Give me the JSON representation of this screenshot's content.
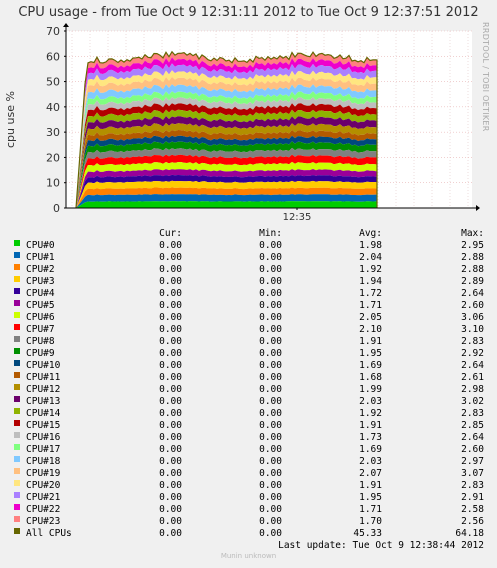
{
  "title": "CPU usage - from Tue Oct  9 12:31:11 2012 to Tue Oct  9 12:37:51 2012",
  "watermark": "RRDTOOL / TOBI OETIKER",
  "footer": "Munin unknown",
  "last_update": "Last update:  Tue Oct  9 12:38:44 2012",
  "legend_header": {
    "cur": "Cur:",
    "min": "Min:",
    "avg": "Avg:",
    "max": "Max:"
  },
  "chart_data": {
    "type": "area",
    "title": "CPU usage - from Tue Oct  9 12:31:11 2012 to Tue Oct  9 12:37:51 2012",
    "ylabel": "cpu use %",
    "xlabel": "",
    "ylim": [
      0,
      70
    ],
    "yticks": [
      0,
      10,
      20,
      30,
      40,
      50,
      60,
      70
    ],
    "xticks": [
      "12:35"
    ],
    "grid": true,
    "stacked": true,
    "series": [
      {
        "name": "CPU#0",
        "color": "#00cc00",
        "cur": "0.00",
        "min": "0.00",
        "avg": "1.98",
        "max": "2.95"
      },
      {
        "name": "CPU#1",
        "color": "#0066b3",
        "cur": "0.00",
        "min": "0.00",
        "avg": "2.04",
        "max": "2.88"
      },
      {
        "name": "CPU#2",
        "color": "#ff8000",
        "cur": "0.00",
        "min": "0.00",
        "avg": "1.92",
        "max": "2.88"
      },
      {
        "name": "CPU#3",
        "color": "#ffcc00",
        "cur": "0.00",
        "min": "0.00",
        "avg": "1.94",
        "max": "2.89"
      },
      {
        "name": "CPU#4",
        "color": "#330099",
        "cur": "0.00",
        "min": "0.00",
        "avg": "1.72",
        "max": "2.64"
      },
      {
        "name": "CPU#5",
        "color": "#990099",
        "cur": "0.00",
        "min": "0.00",
        "avg": "1.71",
        "max": "2.60"
      },
      {
        "name": "CPU#6",
        "color": "#ccff00",
        "cur": "0.00",
        "min": "0.00",
        "avg": "2.05",
        "max": "3.06"
      },
      {
        "name": "CPU#7",
        "color": "#ff0000",
        "cur": "0.00",
        "min": "0.00",
        "avg": "2.10",
        "max": "3.10"
      },
      {
        "name": "CPU#8",
        "color": "#808080",
        "cur": "0.00",
        "min": "0.00",
        "avg": "1.91",
        "max": "2.83"
      },
      {
        "name": "CPU#9",
        "color": "#008f00",
        "cur": "0.00",
        "min": "0.00",
        "avg": "1.95",
        "max": "2.92"
      },
      {
        "name": "CPU#10",
        "color": "#00487d",
        "cur": "0.00",
        "min": "0.00",
        "avg": "1.69",
        "max": "2.64"
      },
      {
        "name": "CPU#11",
        "color": "#b35a00",
        "cur": "0.00",
        "min": "0.00",
        "avg": "1.68",
        "max": "2.61"
      },
      {
        "name": "CPU#12",
        "color": "#b38f00",
        "cur": "0.00",
        "min": "0.00",
        "avg": "1.99",
        "max": "2.98"
      },
      {
        "name": "CPU#13",
        "color": "#6b006b",
        "cur": "0.00",
        "min": "0.00",
        "avg": "2.03",
        "max": "3.02"
      },
      {
        "name": "CPU#14",
        "color": "#8fb300",
        "cur": "0.00",
        "min": "0.00",
        "avg": "1.92",
        "max": "2.83"
      },
      {
        "name": "CPU#15",
        "color": "#b30000",
        "cur": "0.00",
        "min": "0.00",
        "avg": "1.91",
        "max": "2.85"
      },
      {
        "name": "CPU#16",
        "color": "#bebebe",
        "cur": "0.00",
        "min": "0.00",
        "avg": "1.73",
        "max": "2.64"
      },
      {
        "name": "CPU#17",
        "color": "#80ff80",
        "cur": "0.00",
        "min": "0.00",
        "avg": "1.69",
        "max": "2.60"
      },
      {
        "name": "CPU#18",
        "color": "#80c9ff",
        "cur": "0.00",
        "min": "0.00",
        "avg": "2.03",
        "max": "2.97"
      },
      {
        "name": "CPU#19",
        "color": "#ffc080",
        "cur": "0.00",
        "min": "0.00",
        "avg": "2.07",
        "max": "3.07"
      },
      {
        "name": "CPU#20",
        "color": "#ffe680",
        "cur": "0.00",
        "min": "0.00",
        "avg": "1.91",
        "max": "2.83"
      },
      {
        "name": "CPU#21",
        "color": "#aa80ff",
        "cur": "0.00",
        "min": "0.00",
        "avg": "1.95",
        "max": "2.91"
      },
      {
        "name": "CPU#22",
        "color": "#ee00cc",
        "cur": "0.00",
        "min": "0.00",
        "avg": "1.71",
        "max": "2.58"
      },
      {
        "name": "CPU#23",
        "color": "#ff8080",
        "cur": "0.00",
        "min": "0.00",
        "avg": "1.70",
        "max": "2.56"
      }
    ],
    "total": {
      "name": "All CPUs",
      "color": "#666600",
      "cur": "0.00",
      "min": "0.00",
      "avg": "45.33",
      "max": "64.18"
    }
  }
}
